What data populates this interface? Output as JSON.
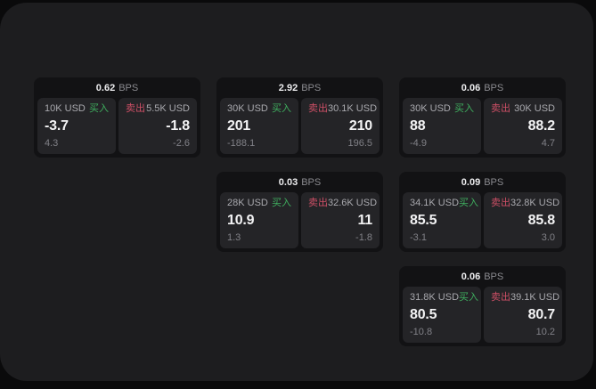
{
  "colors": {
    "buy": "#3faf5f",
    "sell": "#cd4f66",
    "panel_bg": "#1d1d1f",
    "card_bg": "#121214",
    "tile_bg": "#242427"
  },
  "cards": [
    {
      "bps": "0.62",
      "bps_unit": "BPS",
      "buy": {
        "label": "买入",
        "amount": "10K USD",
        "value": "-3.7",
        "delta": "4.3"
      },
      "sell": {
        "label": "卖出",
        "amount": "5.5K USD",
        "value": "-1.8",
        "delta": "-2.6"
      }
    },
    {
      "bps": "2.92",
      "bps_unit": "BPS",
      "buy": {
        "label": "买入",
        "amount": "30K USD",
        "value": "201",
        "delta": "-188.1"
      },
      "sell": {
        "label": "卖出",
        "amount": "30.1K USD",
        "value": "210",
        "delta": "196.5"
      }
    },
    {
      "bps": "0.06",
      "bps_unit": "BPS",
      "buy": {
        "label": "买入",
        "amount": "30K USD",
        "value": "88",
        "delta": "-4.9"
      },
      "sell": {
        "label": "卖出",
        "amount": "30K USD",
        "value": "88.2",
        "delta": "4.7"
      }
    },
    {
      "bps": "0.03",
      "bps_unit": "BPS",
      "buy": {
        "label": "买入",
        "amount": "28K USD",
        "value": "10.9",
        "delta": "1.3"
      },
      "sell": {
        "label": "卖出",
        "amount": "32.6K USD",
        "value": "11",
        "delta": "-1.8"
      }
    },
    {
      "bps": "0.09",
      "bps_unit": "BPS",
      "buy": {
        "label": "买入",
        "amount": "34.1K USD",
        "value": "85.5",
        "delta": "-3.1"
      },
      "sell": {
        "label": "卖出",
        "amount": "32.8K USD",
        "value": "85.8",
        "delta": "3.0"
      }
    },
    {
      "bps": "0.06",
      "bps_unit": "BPS",
      "buy": {
        "label": "买入",
        "amount": "31.8K USD",
        "value": "80.5",
        "delta": "-10.8"
      },
      "sell": {
        "label": "卖出",
        "amount": "39.1K USD",
        "value": "80.7",
        "delta": "10.2"
      }
    }
  ]
}
